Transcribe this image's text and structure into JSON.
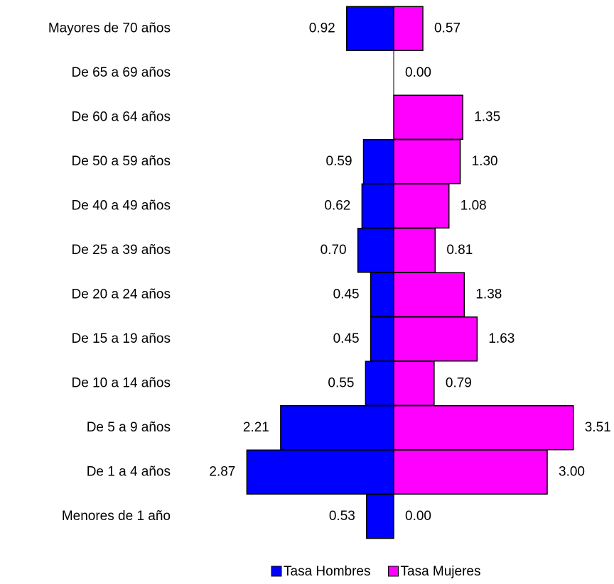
{
  "chart_data": {
    "type": "pyramid",
    "categories": [
      "Mayores de 70 años",
      "De 65 a 69 años",
      "De 60 a 64 años",
      "De 50 a 59 años",
      "De 40 a 49 años",
      "De 25 a 39 años",
      "De 20 a 24 años",
      "De 15 a 19 años",
      "De 10 a 14 años",
      "De 5 a 9 años",
      "De 1 a 4 años",
      "Menores de 1 año"
    ],
    "series": [
      {
        "name": "Tasa Hombres",
        "color": "#0000ff",
        "side": "left",
        "values": [
          0.92,
          null,
          null,
          0.59,
          0.62,
          0.7,
          0.45,
          0.45,
          0.55,
          2.21,
          2.87,
          0.53
        ],
        "value_labels": [
          "0.92",
          null,
          null,
          "0.59",
          "0.62",
          "0.70",
          "0.45",
          "0.45",
          "0.55",
          "2.21",
          "2.87",
          "0.53"
        ]
      },
      {
        "name": "Tasa Mujeres",
        "color": "#ff00ff",
        "side": "right",
        "values": [
          0.57,
          0,
          1.35,
          1.3,
          1.08,
          0.81,
          1.38,
          1.63,
          0.79,
          3.51,
          3,
          0
        ],
        "value_labels": [
          "0.57",
          "0.00",
          "1.35",
          "1.30",
          "1.08",
          "0.81",
          "1.38",
          "1.63",
          "0.79",
          "3.51",
          "3.00",
          "0.00"
        ]
      }
    ]
  }
}
